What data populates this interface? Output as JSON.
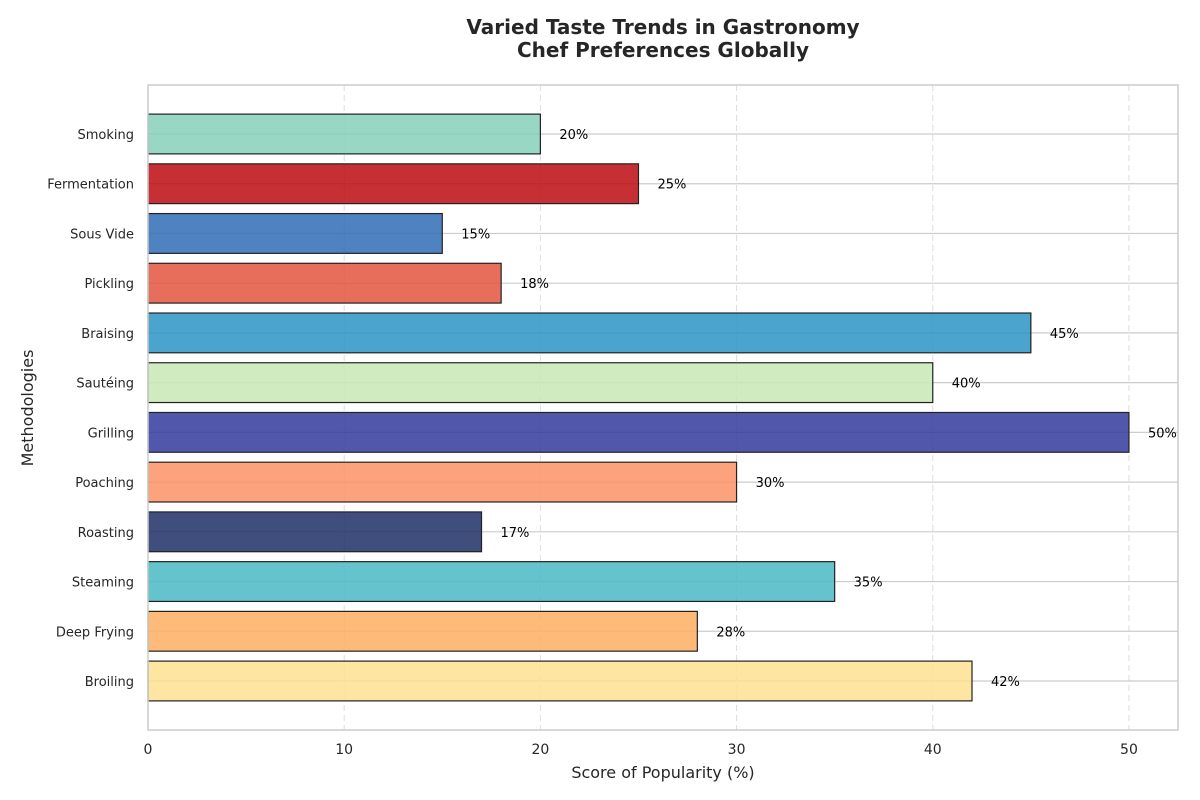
{
  "chart_data": {
    "type": "bar",
    "orientation": "horizontal",
    "title": "Varied Taste Trends in Gastronomy\nChef Preferences Globally",
    "xlabel": "Score of Popularity (%)",
    "ylabel": "Methodologies",
    "xlim": [
      0,
      52.5
    ],
    "xticks": [
      0,
      10,
      20,
      30,
      40,
      50
    ],
    "grid": true,
    "categories": [
      "Broiling",
      "Deep Frying",
      "Steaming",
      "Roasting",
      "Poaching",
      "Grilling",
      "Sautéing",
      "Braising",
      "Pickling",
      "Sous Vide",
      "Fermentation",
      "Smoking"
    ],
    "values": [
      42,
      28,
      35,
      17,
      30,
      50,
      40,
      45,
      18,
      15,
      25,
      20
    ],
    "data_labels": [
      "42%",
      "28%",
      "35%",
      "17%",
      "30%",
      "50%",
      "40%",
      "45%",
      "18%",
      "15%",
      "25%",
      "20%"
    ],
    "colors": [
      "#fee090",
      "#fdae61",
      "#4ab9c5",
      "#1f2f66",
      "#fc9266",
      "#323b9c",
      "#c9e8b6",
      "#2c94c4",
      "#e45540",
      "#2f6cb5",
      "#bc0c10",
      "#86d0ba"
    ]
  }
}
